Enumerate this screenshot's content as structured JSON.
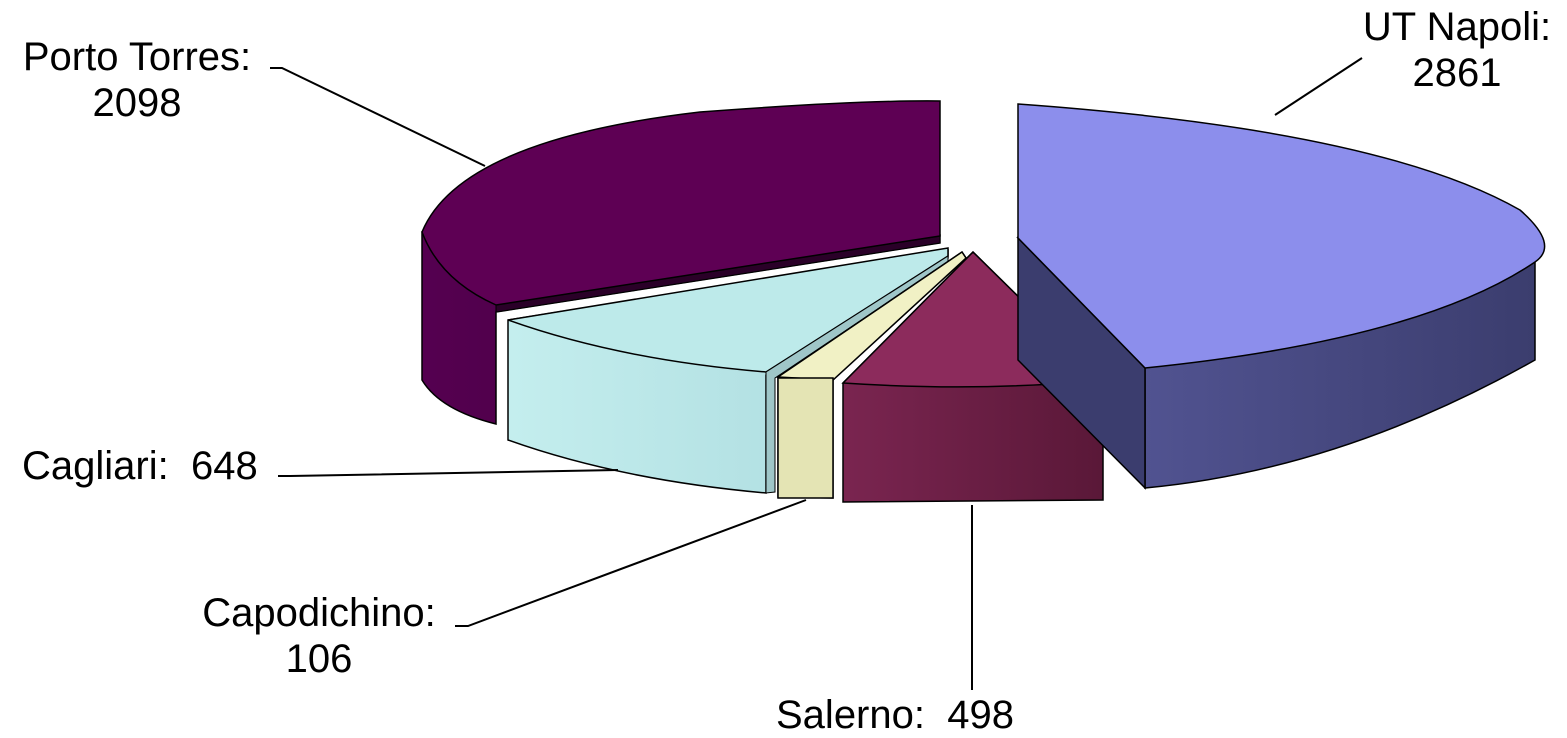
{
  "chart_data": {
    "type": "pie",
    "style": "3d-exploded",
    "slices": [
      {
        "label": "UT Napoli:",
        "value": 2861,
        "color": "#8c8eec"
      },
      {
        "label": "Salerno:",
        "value": 498,
        "color": "#8c2b5c"
      },
      {
        "label": "Capodichino:",
        "value": 106,
        "color": "#f1f1c5"
      },
      {
        "label": "Cagliari:",
        "value": 648,
        "color": "#bdeaea"
      },
      {
        "label": "Porto Torres:",
        "value": 2098,
        "color": "#5e0054"
      }
    ],
    "legend": "none",
    "data_labels": "outside-with-leader-lines"
  }
}
